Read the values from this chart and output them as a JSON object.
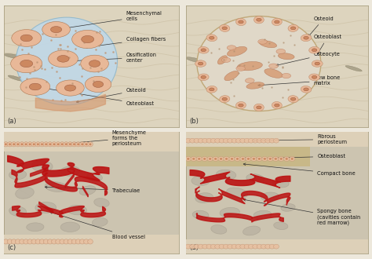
{
  "bg_color": "#ede8dc",
  "panel_bg": "#e8e0ce",
  "panel_border": "#aaa080",
  "blue_fill": "#c0d8e8",
  "cell_body": "#e8b898",
  "cell_nucleus": "#cc8860",
  "osteoid_color": "#d4956a",
  "bone_matrix": "#e0c8a8",
  "bone_ring": "#d4b080",
  "red_vessel": "#bb1111",
  "red_vessel_light": "#cc3333",
  "periosteum_bg": "#e0d0b8",
  "compact_bone_color": "#c8b888",
  "spongy_bg": "#ccc4b0",
  "trabecular_color": "#c8b888",
  "label_color": "#111111",
  "label_fontsize": 5.0,
  "panel_labels": [
    "(a)",
    "(b)",
    "(c)",
    "(d)"
  ],
  "tissue_bg": "#ddd4be",
  "wavy_color": "#bfb090"
}
